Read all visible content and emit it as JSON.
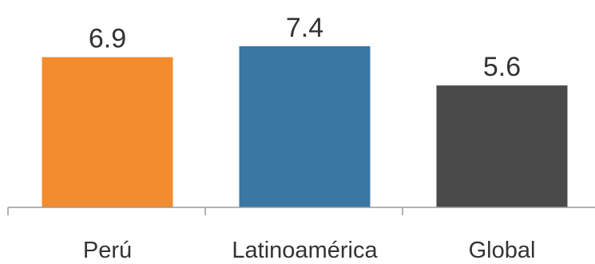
{
  "chart_data": {
    "type": "bar",
    "categories": [
      "Perú",
      "Latinoamérica",
      "Global"
    ],
    "values": [
      6.9,
      7.4,
      5.6
    ],
    "value_labels": [
      "6.9",
      "7.4",
      "5.6"
    ],
    "colors": [
      "#F28C2E",
      "#3A77A3",
      "#4A4A4A"
    ],
    "ylim": [
      0,
      7.4
    ],
    "grid": false,
    "legend": "none",
    "title": "",
    "xlabel": "",
    "ylabel": ""
  }
}
